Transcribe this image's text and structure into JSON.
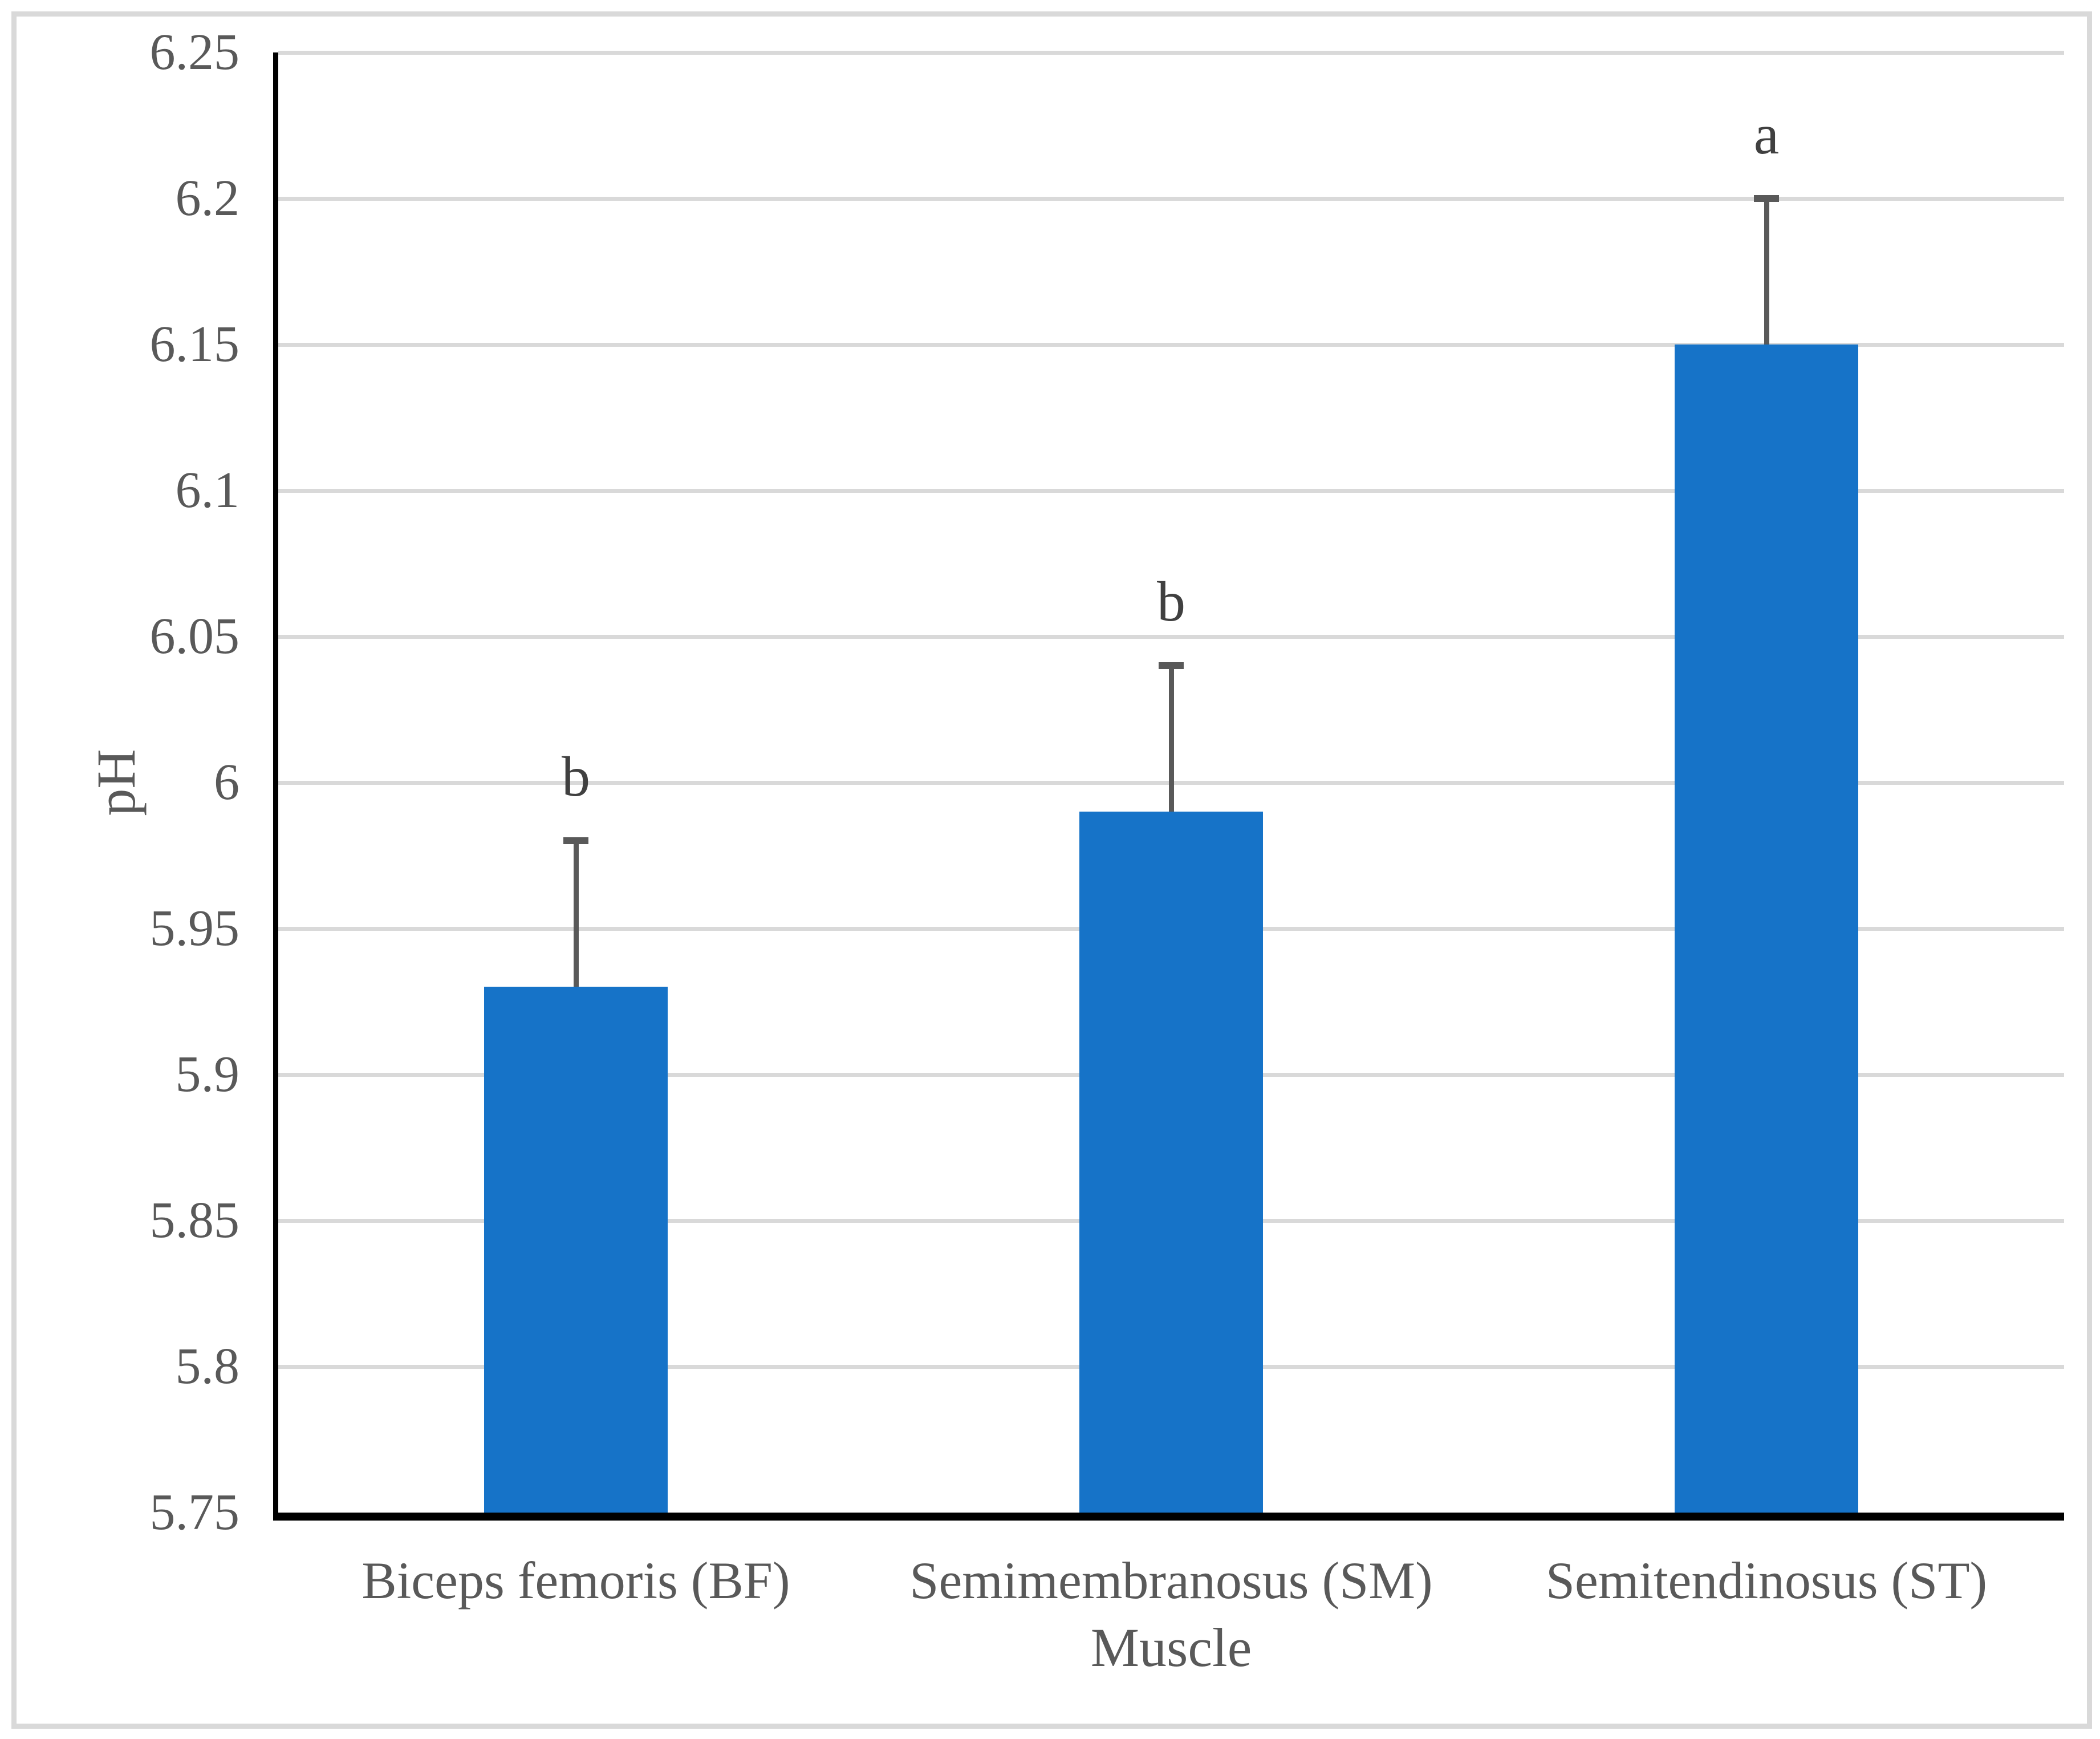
{
  "chart_data": {
    "type": "bar",
    "title": "",
    "xlabel": "Muscle",
    "ylabel": "pH",
    "categories": [
      "Biceps femoris (BF)",
      "Semimembranosus (SM)",
      "Semitendinosus (ST)"
    ],
    "values": [
      5.93,
      5.99,
      6.15
    ],
    "error_plus": [
      0.05,
      0.05,
      0.05
    ],
    "significance_letters": [
      "b",
      "b",
      "a"
    ],
    "ylim": [
      5.75,
      6.25
    ],
    "ytick_values": [
      6.25,
      6.2,
      6.15,
      6.1,
      6.05,
      6.0,
      5.95,
      5.9,
      5.85,
      5.8,
      5.75
    ],
    "ytick_labels": [
      "6.25",
      "6.2",
      "6.15",
      "6.1",
      "6.05",
      "6",
      "5.95",
      "5.9",
      "5.85",
      "5.8",
      "5.75"
    ],
    "grid": true,
    "legend": false,
    "colors": {
      "bar": "#1673c8",
      "error_bar": "#595959",
      "gridline": "#d9d9d9",
      "axis_line": "#000000",
      "tick_text": "#595959",
      "letter_text": "#404040",
      "frame_border": "#d9d9d9",
      "background": "#ffffff"
    }
  }
}
